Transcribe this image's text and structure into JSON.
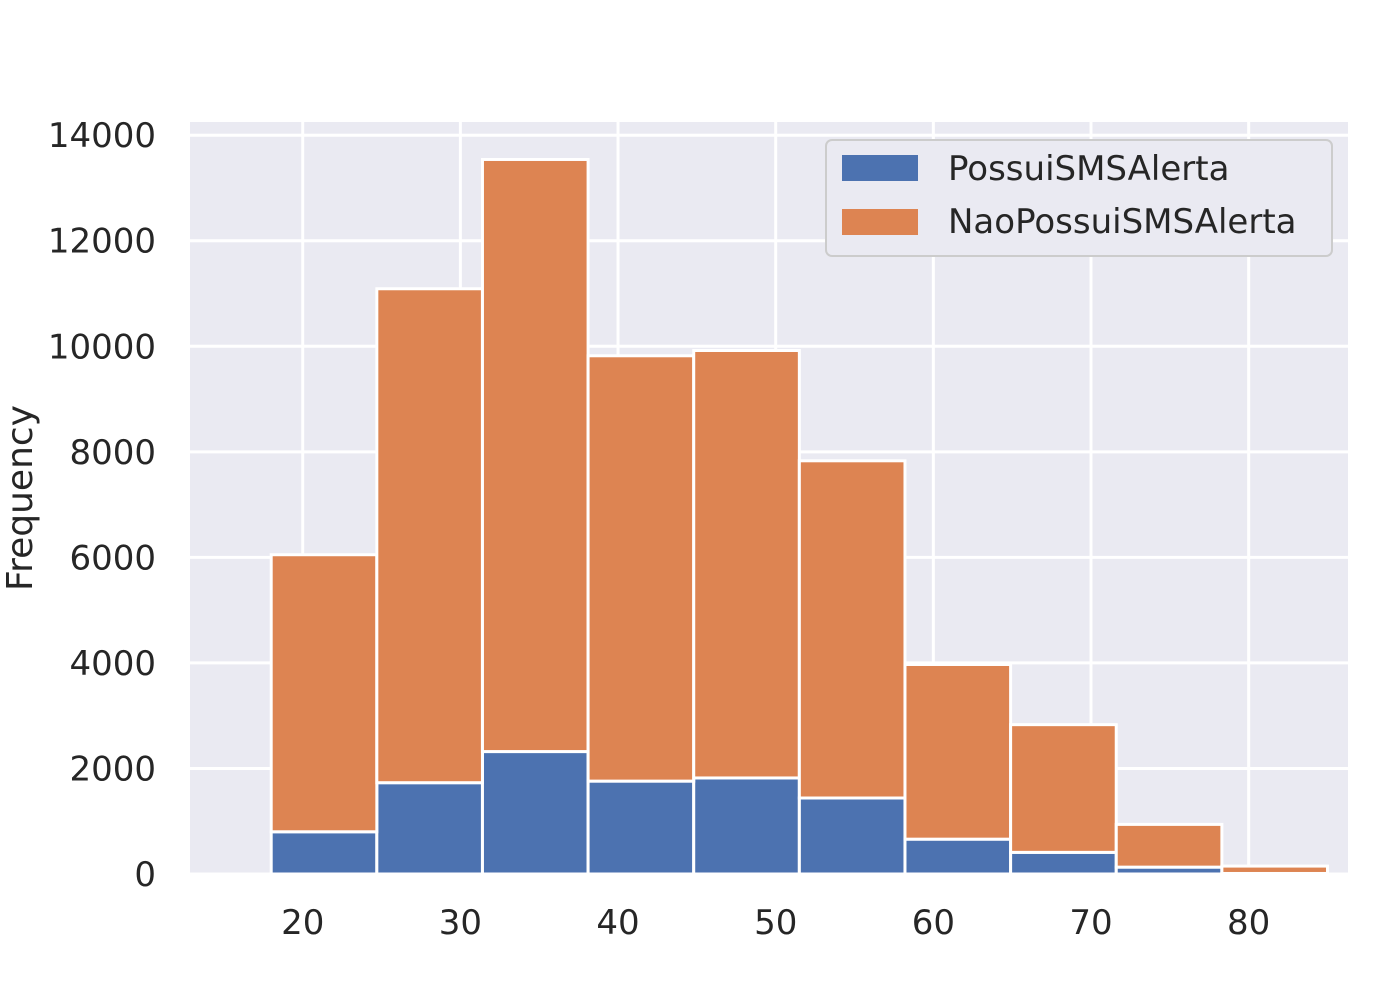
{
  "chart_data": {
    "type": "bar",
    "stacked": true,
    "histogram": true,
    "bin_edges": [
      18,
      24.7,
      31.4,
      38.1,
      44.8,
      51.5,
      58.2,
      64.9,
      71.6,
      78.3,
      85
    ],
    "series": [
      {
        "name": "PossuiSMSAlerta",
        "color": "#4c72b0",
        "values": [
          800,
          1730,
          2320,
          1760,
          1820,
          1440,
          660,
          410,
          130,
          10
        ]
      },
      {
        "name": "NaoPossuiSMSAlerta",
        "color": "#dd8452",
        "values": [
          5250,
          9360,
          11220,
          8060,
          8100,
          6390,
          3310,
          2420,
          810,
          140
        ]
      }
    ],
    "xlim": [
      12.85,
      86.3
    ],
    "ylim": [
      0,
      14250
    ],
    "xticks": [
      "20",
      "30",
      "40",
      "50",
      "60",
      "70",
      "80"
    ],
    "yticks": [
      "0",
      "2000",
      "4000",
      "6000",
      "8000",
      "10000",
      "12000",
      "14000"
    ],
    "title": "",
    "xlabel": "",
    "ylabel": "Frequency",
    "grid": true,
    "legend_position": "top-right",
    "background": "#eaeaf2"
  }
}
